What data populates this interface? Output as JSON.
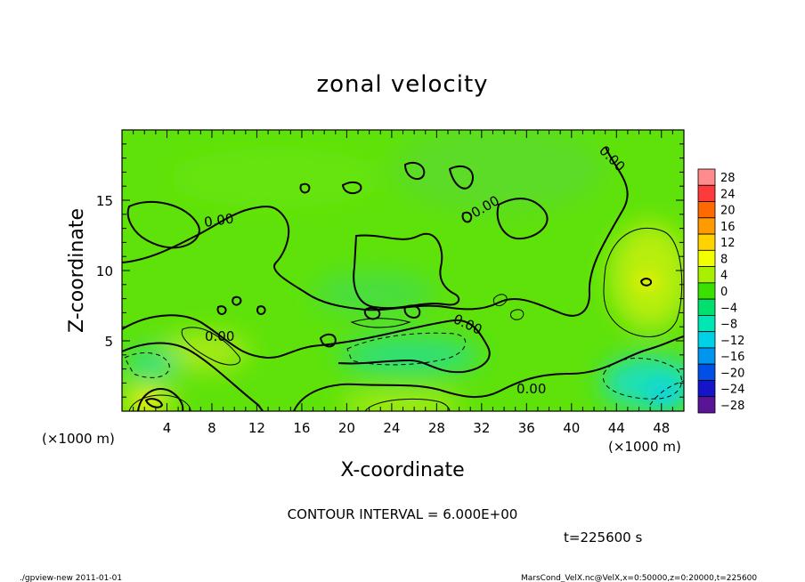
{
  "chart_data": {
    "type": "heatmap",
    "title": "zonal velocity",
    "xlabel": "X-coordinate",
    "ylabel": "Z-coordinate",
    "x_unit": "(×1000 m)",
    "x_unit_right": "(×1000 m)",
    "xlim": [
      0,
      50
    ],
    "ylim": [
      0,
      20
    ],
    "x_ticks": [
      4,
      8,
      12,
      16,
      20,
      24,
      28,
      32,
      36,
      40,
      44,
      48
    ],
    "y_ticks": [
      5,
      10,
      15
    ],
    "contour_label": "0.00",
    "contour_interval_text": "CONTOUR INTERVAL = 6.000E+00",
    "time_text": "t=225600 s",
    "colorbar": {
      "levels": [
        28,
        24,
        20,
        16,
        12,
        8,
        4,
        0,
        -4,
        -8,
        -12,
        -16,
        -20,
        -24,
        -28
      ],
      "colors": [
        "#ff8c8c",
        "#ff3a3a",
        "#ff6a00",
        "#ff9a00",
        "#ffd200",
        "#f2ff00",
        "#a9f000",
        "#39e000",
        "#00e06e",
        "#00e6b4",
        "#00d2e6",
        "#0096f0",
        "#0050e6",
        "#1414c8",
        "#5a1496"
      ]
    },
    "features": [
      {
        "kind": "max",
        "x": 46.5,
        "z": 9.2,
        "value": 8
      },
      {
        "kind": "max",
        "x": 7.5,
        "z": 5.5,
        "value": 8
      },
      {
        "kind": "max",
        "x": 3,
        "z": 0.8,
        "value": 12
      },
      {
        "kind": "max",
        "x": 26,
        "z": 0.5,
        "value": 8
      },
      {
        "kind": "min",
        "x": 47,
        "z": 1.5,
        "value": -12
      },
      {
        "kind": "min",
        "x": 26,
        "z": 5,
        "value": -6
      },
      {
        "kind": "min",
        "x": 3,
        "z": 3.5,
        "value": -6
      }
    ]
  },
  "footer": {
    "left": "./gpview-new   2011-01-01",
    "right": "MarsCond_VelX.nc@VelX,x=0:50000,z=0:20000,t=225600"
  }
}
